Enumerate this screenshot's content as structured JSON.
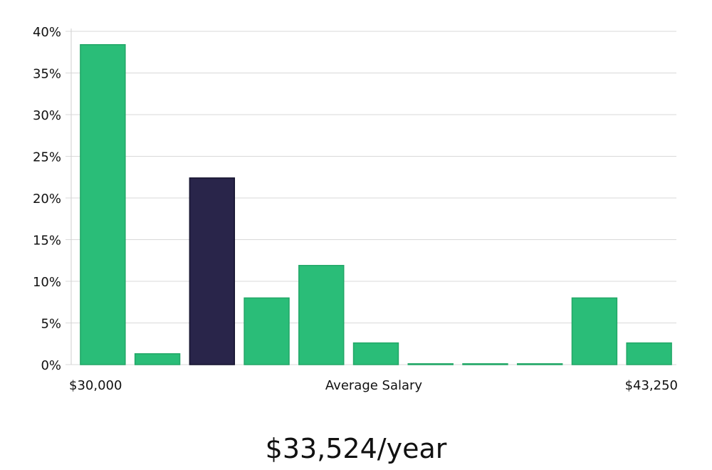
{
  "chart_data": {
    "type": "bar",
    "categories": [
      "1",
      "2",
      "3",
      "4",
      "5",
      "6",
      "7",
      "8",
      "9",
      "10",
      "11"
    ],
    "values": [
      38.4,
      1.3,
      22.4,
      8.0,
      11.9,
      2.6,
      0.1,
      0.1,
      0.1,
      8.0,
      2.6
    ],
    "highlight_index": 2,
    "ylim": [
      0,
      40
    ],
    "y_ticks": [
      0,
      5,
      10,
      15,
      20,
      25,
      30,
      35,
      40
    ],
    "y_tick_suffix": "%",
    "xlabel": "Average Salary",
    "x_min_label": "$30,000",
    "x_max_label": "$43,250",
    "grid": true,
    "colors": {
      "bar": "#2abd78",
      "bar_stroke": "#22a767",
      "highlight": "#29254a",
      "highlight_stroke": "#14122e",
      "grid": "#d9d9d9",
      "axis": "#cfcfcf"
    }
  },
  "headline": {
    "salary": "$33,524/year"
  }
}
